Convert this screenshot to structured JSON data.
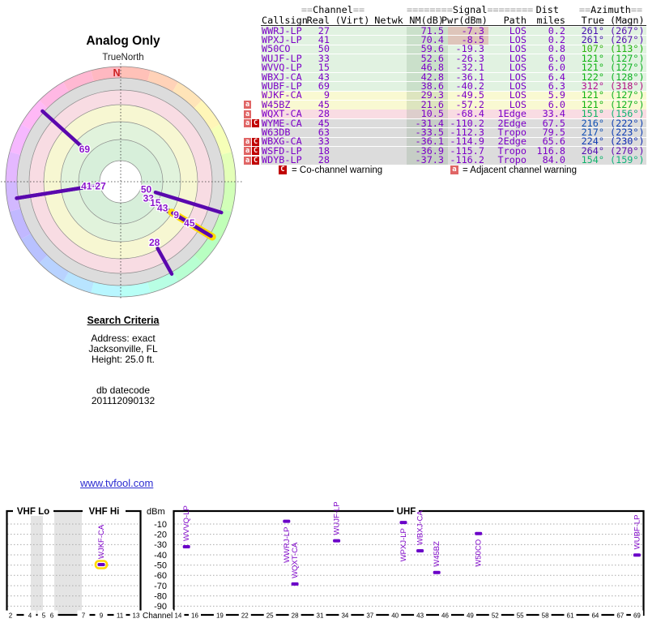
{
  "radar_panel": {
    "title": "Analog Only",
    "north_label": "TrueNorth",
    "compass_n": "N"
  },
  "search_criteria": {
    "heading": "Search Criteria",
    "address": "Address: exact",
    "city": "Jacksonville, FL",
    "height": "Height: 25.0 ft.",
    "db_label": "db datecode",
    "db_code": "201112090132"
  },
  "link": {
    "text": "www.tvfool.com"
  },
  "table": {
    "group_headers": {
      "channel_pad": "==",
      "channel": "Channel",
      "signal_pad": "========",
      "signal": "Signal",
      "dist": "Dist",
      "azimuth_pad": "==",
      "azimuth": "Azimuth"
    },
    "columns": {
      "callsign": "Callsign",
      "real": "Real",
      "virt": "(Virt)",
      "netwk": "Netwk",
      "nm": "NM(dB)",
      "pwr": "Pwr(dBm)",
      "path": "Path",
      "miles": "miles",
      "true_az": "True",
      "magn": "(Magn)"
    },
    "legend": {
      "c_symbol": "C",
      "c_text": "= Co-channel warning",
      "a_symbol": "a",
      "a_text": "= Adjacent channel warning"
    }
  },
  "stations": [
    {
      "callsign": "WWRJ-LP",
      "real": 27,
      "nm": 71.5,
      "pwr": -7.3,
      "path": "LOS",
      "miles": 0.2,
      "true_az": 261,
      "magn_az": 267,
      "zone": "green",
      "warn": "",
      "pwr_warn": true
    },
    {
      "callsign": "WPXJ-LP",
      "real": 41,
      "nm": 70.4,
      "pwr": -8.5,
      "path": "LOS",
      "miles": 0.2,
      "true_az": 261,
      "magn_az": 267,
      "zone": "green",
      "warn": "",
      "pwr_warn": true
    },
    {
      "callsign": "W50CO",
      "real": 50,
      "nm": 59.6,
      "pwr": -19.3,
      "path": "LOS",
      "miles": 0.8,
      "true_az": 107,
      "magn_az": 113,
      "zone": "green",
      "warn": "",
      "pwr_warn": false
    },
    {
      "callsign": "WUJF-LP",
      "real": 33,
      "nm": 52.6,
      "pwr": -26.3,
      "path": "LOS",
      "miles": 6.0,
      "true_az": 121,
      "magn_az": 127,
      "zone": "green",
      "warn": "",
      "pwr_warn": false
    },
    {
      "callsign": "WVVQ-LP",
      "real": 15,
      "nm": 46.8,
      "pwr": -32.1,
      "path": "LOS",
      "miles": 6.0,
      "true_az": 121,
      "magn_az": 127,
      "zone": "green",
      "warn": "",
      "pwr_warn": false
    },
    {
      "callsign": "WBXJ-CA",
      "real": 43,
      "nm": 42.8,
      "pwr": -36.1,
      "path": "LOS",
      "miles": 6.4,
      "true_az": 122,
      "magn_az": 128,
      "zone": "green",
      "warn": "",
      "pwr_warn": false
    },
    {
      "callsign": "WUBF-LP",
      "real": 69,
      "nm": 38.6,
      "pwr": -40.2,
      "path": "LOS",
      "miles": 6.3,
      "true_az": 312,
      "magn_az": 318,
      "zone": "green",
      "warn": "",
      "pwr_warn": false
    },
    {
      "callsign": "WJKF-CA",
      "real": 9,
      "nm": 29.3,
      "pwr": -49.5,
      "path": "LOS",
      "miles": 5.9,
      "true_az": 121,
      "magn_az": 127,
      "zone": "yellow",
      "warn": "",
      "pwr_warn": false,
      "highlight": true
    },
    {
      "callsign": "W45BZ",
      "real": 45,
      "nm": 21.6,
      "pwr": -57.2,
      "path": "LOS",
      "miles": 6.0,
      "true_az": 121,
      "magn_az": 127,
      "zone": "yellow",
      "warn": "a",
      "pwr_warn": false
    },
    {
      "callsign": "WQXT-CA",
      "real": 28,
      "nm": 10.5,
      "pwr": -68.4,
      "path": "1Edge",
      "miles": 33.4,
      "true_az": 151,
      "magn_az": 156,
      "zone": "pink",
      "warn": "a",
      "pwr_warn": false
    },
    {
      "callsign": "WYME-CA",
      "real": 45,
      "nm": -31.4,
      "pwr": -110.2,
      "path": "2Edge",
      "miles": 67.5,
      "true_az": 216,
      "magn_az": 222,
      "zone": "gray",
      "warn": "aC",
      "pwr_warn": false
    },
    {
      "callsign": "W63DB",
      "real": 63,
      "nm": -33.5,
      "pwr": -112.3,
      "path": "Tropo",
      "miles": 79.5,
      "true_az": 217,
      "magn_az": 223,
      "zone": "gray",
      "warn": "",
      "pwr_warn": false
    },
    {
      "callsign": "WBXG-CA",
      "real": 33,
      "nm": -36.1,
      "pwr": -114.9,
      "path": "2Edge",
      "miles": 65.6,
      "true_az": 224,
      "magn_az": 230,
      "zone": "gray",
      "warn": "aC",
      "pwr_warn": false
    },
    {
      "callsign": "WSFD-LP",
      "real": 18,
      "nm": -36.9,
      "pwr": -115.7,
      "path": "Tropo",
      "miles": 116.8,
      "true_az": 264,
      "magn_az": 270,
      "zone": "gray",
      "warn": "aC",
      "pwr_warn": false
    },
    {
      "callsign": "WDYB-LP",
      "real": 28,
      "nm": -37.3,
      "pwr": -116.2,
      "path": "Tropo",
      "miles": 84.0,
      "true_az": 154,
      "magn_az": 159,
      "zone": "gray",
      "warn": "aC",
      "pwr_warn": false
    }
  ],
  "colors": {
    "purple": "#7d00c8",
    "marker_purple": "#6a00c8",
    "highlight_yellow": "#ffd900",
    "warn_c_red": "#c00000",
    "warn_a_red": "#e06565",
    "row_green": "#e1f2e1",
    "row_yellow": "#f9f9d2",
    "row_pink": "#f9dce3",
    "row_gray": "#dcdcdc",
    "link_blue": "#2b2bd0",
    "compass_n_red": "#cc2222"
  },
  "chart_data": [
    {
      "type": "radar",
      "title": "Analog Only",
      "north_label": "TrueNorth",
      "units": "spoke angle = true azimuth (N up); spoke inner radius = signal strength NM(dB)",
      "rings_outer_to_inner": [
        "azimuth-rainbow",
        "gray",
        "pink",
        "yellow",
        "green",
        "green",
        "white-center"
      ],
      "spokes": [
        {
          "channel": 27,
          "azimuth": 261,
          "nm": 71.5,
          "label": null
        },
        {
          "channel": 41,
          "azimuth": 261,
          "nm": 70.4,
          "label": "41·27",
          "label_r": 34
        },
        {
          "channel": 50,
          "azimuth": 107,
          "nm": 59.6,
          "label": "50",
          "label_r": 33
        },
        {
          "channel": 33,
          "azimuth": 121,
          "nm": 52.6,
          "label": "33",
          "label_r": 40
        },
        {
          "channel": 15,
          "azimuth": 121,
          "nm": 46.8,
          "label": "15",
          "label_r": 50
        },
        {
          "channel": 43,
          "azimuth": 122,
          "nm": 42.8,
          "label": "43",
          "label_r": 61
        },
        {
          "channel": 9,
          "azimuth": 121,
          "nm": 29.3,
          "label": "9",
          "label_r": 80,
          "highlight": true
        },
        {
          "channel": 45,
          "azimuth": 121,
          "nm": 21.6,
          "label": "45",
          "label_r": 99
        },
        {
          "channel": 69,
          "azimuth": 312,
          "nm": 38.6,
          "label": "69",
          "label_r": 60
        },
        {
          "channel": 28,
          "azimuth": 151,
          "nm": 10.5,
          "label": "28",
          "label_r": 86
        }
      ]
    },
    {
      "type": "scatter",
      "xlabel": "Channel",
      "ylabel": "dBm",
      "band_labels": [
        "VHF Lo",
        "VHF Hi",
        "UHF"
      ],
      "ylim": [
        -95,
        -5
      ],
      "db_ticks": [
        -10,
        -20,
        -30,
        -40,
        -50,
        -60,
        -70,
        -80,
        -90
      ],
      "vhf_ticks": [
        2,
        4,
        5,
        6,
        7,
        9,
        11,
        13
      ],
      "uhf_ticks": [
        14,
        16,
        19,
        22,
        25,
        28,
        31,
        34,
        37,
        40,
        43,
        46,
        49,
        52,
        55,
        58,
        61,
        64,
        67,
        69
      ],
      "points": [
        {
          "callsign": "WWRJ-LP",
          "channel": 27,
          "pwr_dbm": -7.3
        },
        {
          "callsign": "WPXJ-LP",
          "channel": 41,
          "pwr_dbm": -8.5
        },
        {
          "callsign": "W50CO",
          "channel": 50,
          "pwr_dbm": -19.3
        },
        {
          "callsign": "WUJF-LP",
          "channel": 33,
          "pwr_dbm": -26.3
        },
        {
          "callsign": "WVVQ-LP",
          "channel": 15,
          "pwr_dbm": -32.1
        },
        {
          "callsign": "WBXJ-CA",
          "channel": 43,
          "pwr_dbm": -36.1
        },
        {
          "callsign": "WUBF-LP",
          "channel": 69,
          "pwr_dbm": -40.2
        },
        {
          "callsign": "WJKF-CA",
          "channel": 9,
          "pwr_dbm": -49.5,
          "highlight": true
        },
        {
          "callsign": "W45BZ",
          "channel": 45,
          "pwr_dbm": -57.2
        },
        {
          "callsign": "WQXT-CA",
          "channel": 28,
          "pwr_dbm": -68.4
        }
      ]
    }
  ]
}
